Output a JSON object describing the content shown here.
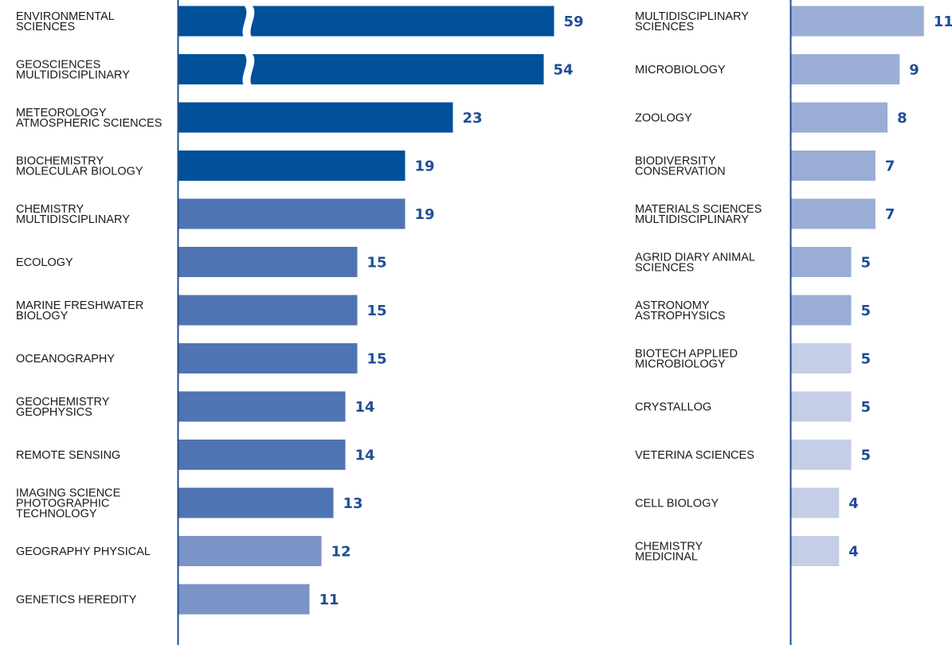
{
  "chart_data": [
    {
      "type": "bar",
      "orientation": "horizontal",
      "categories": [
        [
          "ENVIRONMENTAL",
          "SCIENCES"
        ],
        [
          "GEOSCIENCES",
          "MULTIDISCIPLINARY"
        ],
        [
          "METEOROLOGY",
          "ATMOSPHERIC SCIENCES"
        ],
        [
          "BIOCHEMISTRY",
          "MOLECULAR BIOLOGY"
        ],
        [
          "CHEMISTRY",
          "MULTIDISCIPLINARY"
        ],
        [
          "ECOLOGY"
        ],
        [
          "MARINE  FRESHWATER",
          "BIOLOGY"
        ],
        [
          "OCEANOGRAPHY"
        ],
        [
          "GEOCHEMISTRY",
          "GEOPHYSICS"
        ],
        [
          "REMOTE SENSING"
        ],
        [
          "IMAGING SCIENCE",
          "PHOTOGRAPHIC",
          "TECHNOLOGY"
        ],
        [
          "GEOGRAPHY PHYSICAL"
        ],
        [
          "GENETICS HEREDITY"
        ]
      ],
      "values": [
        59,
        54,
        23,
        19,
        19,
        15,
        15,
        15,
        14,
        14,
        13,
        12,
        11
      ],
      "value_labels": [
        "59",
        "54",
        "23",
        "19",
        "19",
        "15",
        "15",
        "15",
        "14",
        "14",
        "13",
        "12",
        "11"
      ],
      "bar_colors": [
        "#00509a",
        "#00509a",
        "#00509a",
        "#00509a",
        "#4f74b3",
        "#4f74b3",
        "#4f74b3",
        "#4f74b3",
        "#4f74b3",
        "#4f74b3",
        "#4f74b3",
        "#7b93c7",
        "#7b93c7"
      ],
      "axis_breaks": [
        0,
        1
      ],
      "value_label_color": "#1f4e96"
    },
    {
      "type": "bar",
      "orientation": "horizontal",
      "categories": [
        [
          "MULTIDISCIPLINARY",
          "SCIENCES"
        ],
        [
          "MICROBIOLOGY"
        ],
        [
          "ZOOLOGY"
        ],
        [
          "BIODIVERSITY",
          "CONSERVATION"
        ],
        [
          "MATERIALS SCIENCES",
          "MULTIDISCIPLINARY"
        ],
        [
          "AGRID DIARY ANIMAL",
          "SCIENCES"
        ],
        [
          "ASTRONOMY",
          "ASTROPHYSICS"
        ],
        [
          "BIOTECH APPLIED",
          "MICROBIOLOGY"
        ],
        [
          "CRYSTALLOG"
        ],
        [
          "VETERINA SCIENCES"
        ],
        [
          "CELL BIOLOGY"
        ],
        [
          "CHEMISTRY",
          "MEDICINAL"
        ]
      ],
      "values": [
        11,
        9,
        8,
        7,
        7,
        5,
        5,
        5,
        5,
        5,
        4,
        4
      ],
      "value_labels": [
        "11",
        "9",
        "8",
        "7",
        "7",
        "5",
        "5",
        "5",
        "5",
        "5",
        "4",
        "4"
      ],
      "bar_colors": [
        "#9aaed5",
        "#9aaed5",
        "#9aaed5",
        "#9aaed5",
        "#9aaed5",
        "#9aaed5",
        "#9aaed5",
        "#c4cee6",
        "#c4cee6",
        "#c4cee6",
        "#c4cee6",
        "#c4cee6"
      ],
      "value_label_color": "#1f4e96"
    }
  ]
}
